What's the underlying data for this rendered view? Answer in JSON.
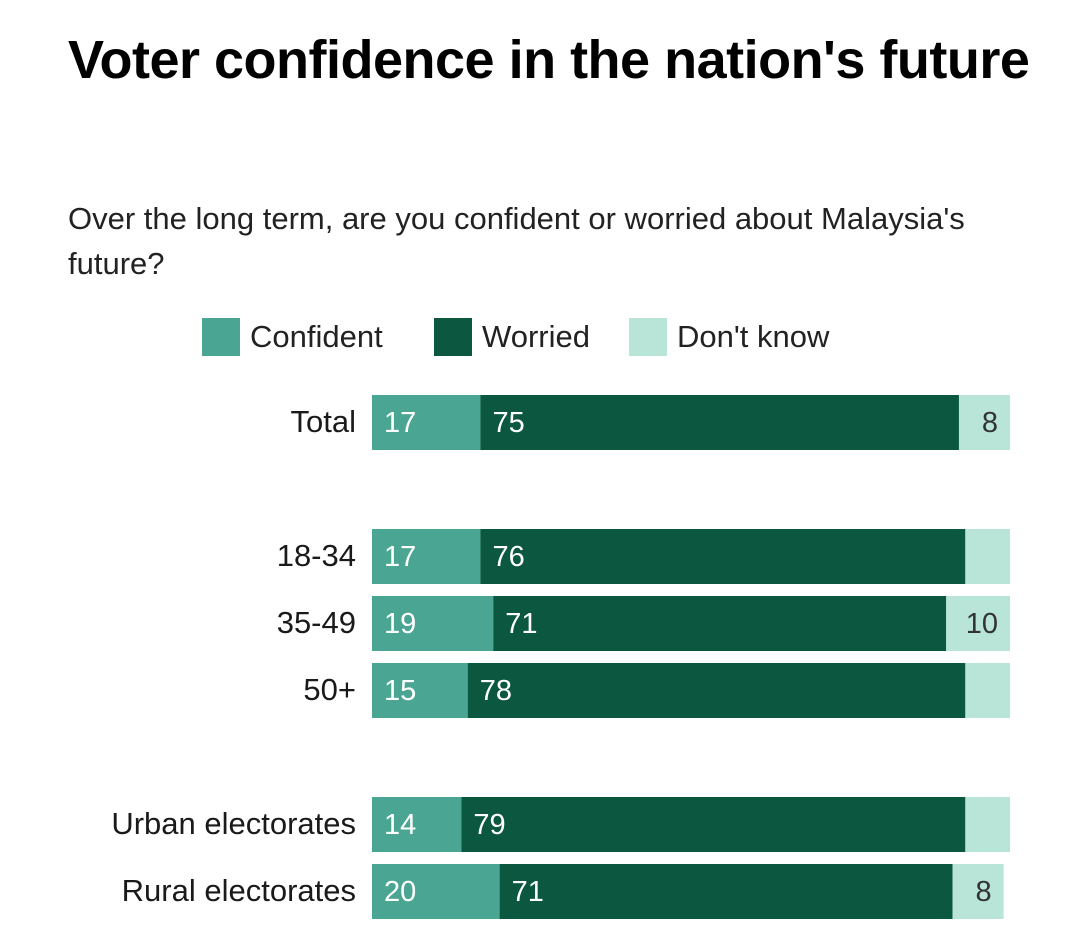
{
  "header": {
    "title": "Voter confidence in the nation's future",
    "subtitle": "Over the long term, are you confident or worried about Malaysia's future?"
  },
  "colors": {
    "confident": "#4ba593",
    "worried": "#0b573f",
    "dont_know": "#b8e5d8",
    "label_on_dark": "#ffffff",
    "label_on_light": "#333333"
  },
  "chart_data": {
    "type": "bar",
    "orientation": "horizontal",
    "stacked": true,
    "legend_position": "top",
    "categories": [
      "Total",
      "18-34",
      "35-49",
      "50+",
      "Urban electorates",
      "Rural electorates"
    ],
    "groups": [
      [
        0
      ],
      [
        1,
        2,
        3
      ],
      [
        4,
        5
      ]
    ],
    "series": [
      {
        "name": "Confident",
        "values": [
          17,
          17,
          19,
          15,
          14,
          20
        ],
        "labels": [
          "17",
          "17",
          "19",
          "15",
          "14",
          "20"
        ]
      },
      {
        "name": "Worried",
        "values": [
          75,
          76,
          71,
          78,
          79,
          71
        ],
        "labels": [
          "75",
          "76",
          "71",
          "78",
          "79",
          "71"
        ]
      },
      {
        "name": "Don't know",
        "values": [
          8,
          7,
          10,
          7,
          7,
          8
        ],
        "labels": [
          "8",
          "",
          "10",
          "",
          "",
          "8"
        ]
      }
    ],
    "xlim": [
      0,
      100
    ]
  }
}
